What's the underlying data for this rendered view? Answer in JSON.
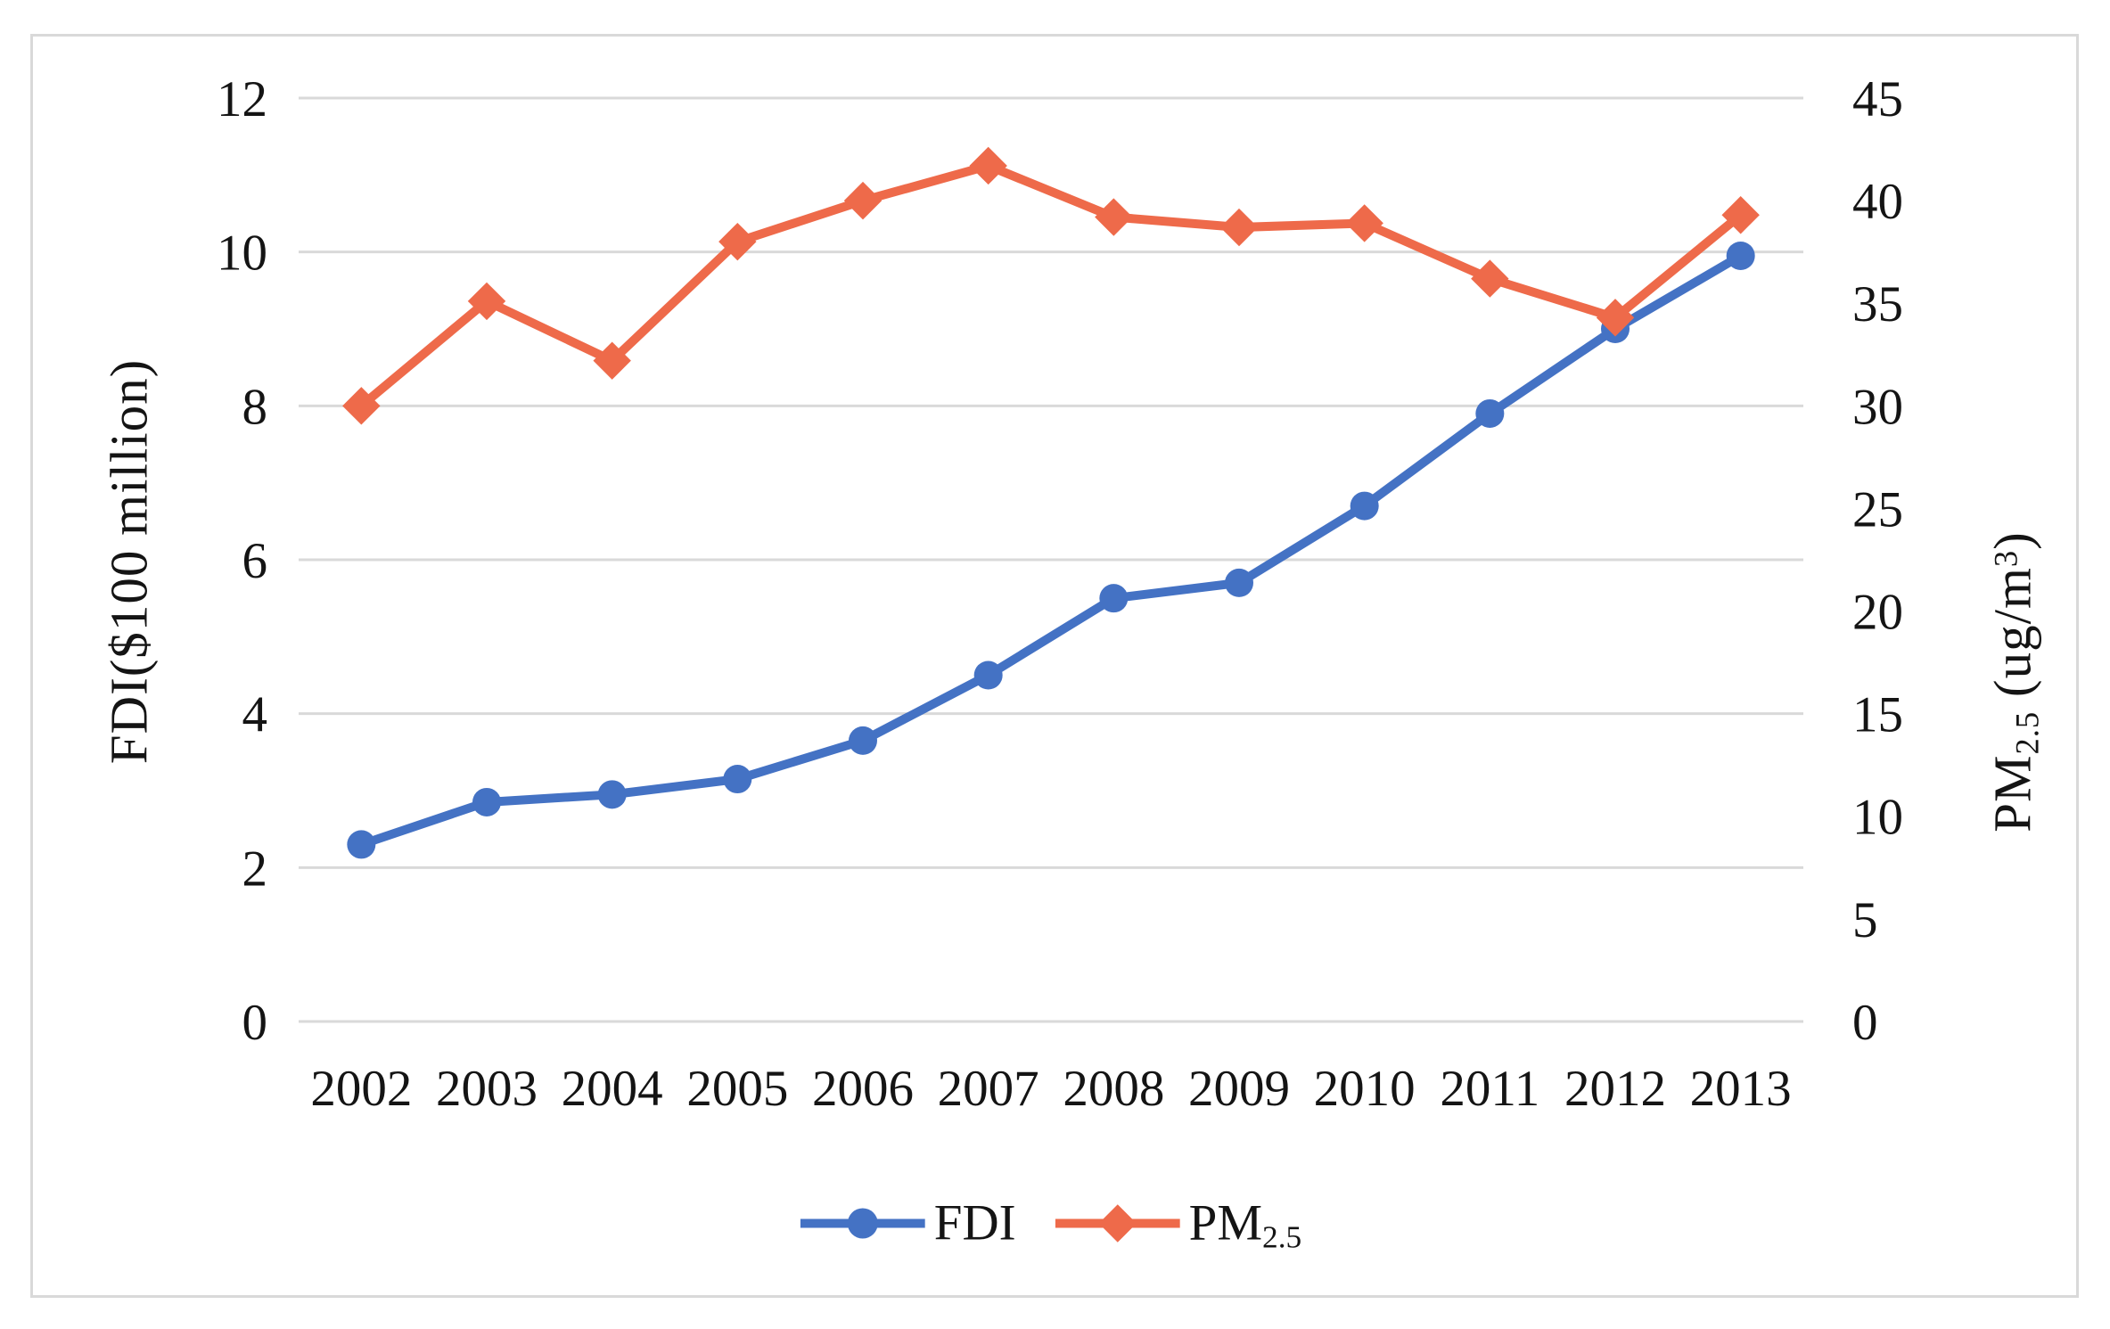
{
  "figure": {
    "background": "#ffffff",
    "frame_border_color": "#d9d9d9",
    "gridline_color": "#d9d9d9",
    "text_color": "#141414"
  },
  "chart_data": {
    "type": "line",
    "categories": [
      "2002",
      "2003",
      "2004",
      "2005",
      "2006",
      "2007",
      "2008",
      "2009",
      "2010",
      "2011",
      "2012",
      "2013"
    ],
    "series": [
      {
        "name": "FDI",
        "axis": "left",
        "color": "#4472c4",
        "marker": "circle",
        "values": [
          2.3,
          2.85,
          2.95,
          3.15,
          3.65,
          4.5,
          5.5,
          5.7,
          6.7,
          7.9,
          9.0,
          9.95
        ]
      },
      {
        "name": "PM2.5",
        "axis": "right",
        "color": "#ee6a4a",
        "marker": "diamond",
        "values": [
          30,
          35.1,
          32.2,
          38,
          40,
          41.7,
          39.2,
          38.7,
          38.9,
          36.2,
          34.3,
          39.3
        ]
      }
    ],
    "left_axis": {
      "title": "FDI($100 million)",
      "range": [
        0,
        12
      ],
      "tick_step": 2,
      "tick_labels": [
        "0",
        "2",
        "4",
        "6",
        "8",
        "10",
        "12"
      ]
    },
    "right_axis": {
      "title_pre": "PM",
      "title_sub": "2.5",
      "title_mid": " (ug/m",
      "title_sup": "3",
      "title_post": ")",
      "range": [
        0,
        45
      ],
      "tick_step": 5,
      "tick_labels": [
        "0",
        "5",
        "10",
        "15",
        "20",
        "25",
        "30",
        "35",
        "40",
        "45"
      ]
    },
    "grid": "horizontal",
    "legend": {
      "position": "bottom-center",
      "items": [
        {
          "label": "FDI"
        },
        {
          "label_pre": "PM",
          "label_sub": "2.5"
        }
      ]
    }
  }
}
